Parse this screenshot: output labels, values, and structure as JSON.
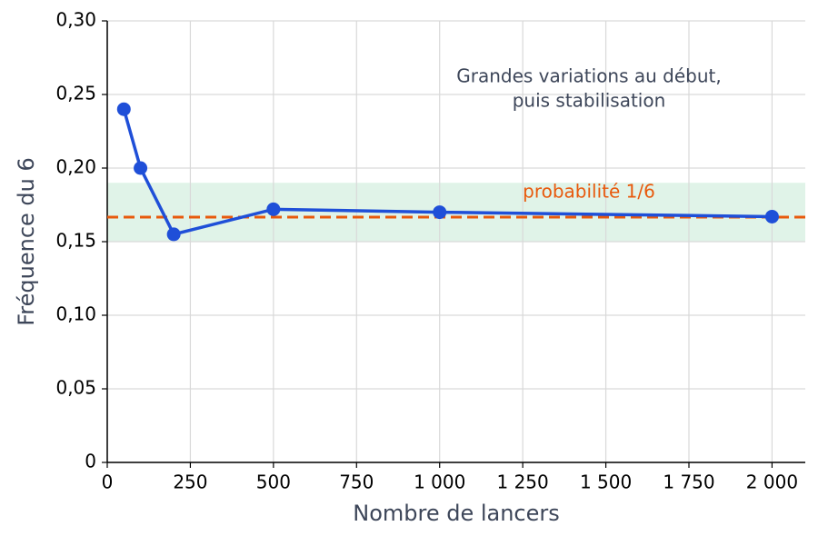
{
  "chart_data": {
    "type": "line",
    "xlabel": "Nombre de lancers",
    "ylabel": "Fréquence du 6",
    "x": [
      50,
      100,
      200,
      500,
      1000,
      2000
    ],
    "values": [
      0.24,
      0.2,
      0.155,
      0.172,
      0.17,
      0.167
    ],
    "color": "#1f4fd8",
    "xlim": [
      0,
      2100
    ],
    "xticks": [
      0,
      250,
      500,
      750,
      {
        "value": 1000,
        "label": "1 000"
      },
      {
        "value": 1250,
        "label": "1 250"
      },
      {
        "value": 1500,
        "label": "1 500"
      },
      {
        "value": 1750,
        "label": "1 750"
      },
      {
        "value": 2000,
        "label": "2 000"
      }
    ],
    "ylim": [
      0,
      0.3
    ],
    "yticks": [
      0,
      {
        "value": 0.05,
        "label": "0,05"
      },
      {
        "value": 0.1,
        "label": "0,10"
      },
      {
        "value": 0.15,
        "label": "0,15"
      },
      {
        "value": 0.2,
        "label": "0,20"
      },
      {
        "value": 0.25,
        "label": "0,25"
      },
      {
        "value": 0.3,
        "label": "0,30"
      }
    ],
    "grid": true,
    "band": [
      0.15,
      0.19
    ],
    "band_color": "#d8f0e2",
    "reference_line": {
      "value": 0.1667,
      "label": "probabilité 1/6",
      "color": "#e8590c"
    },
    "annotation": [
      "Grandes variations au début,",
      "puis stabilisation"
    ]
  }
}
